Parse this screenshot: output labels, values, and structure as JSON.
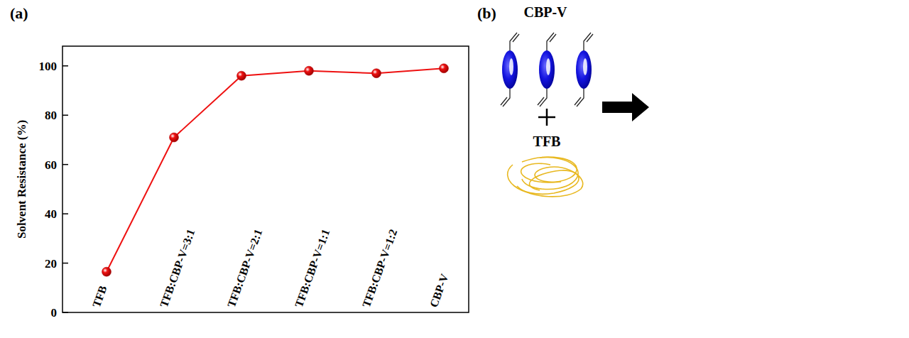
{
  "chart_data": {
    "type": "line",
    "title": "(a)",
    "y_label": "Solvent Resistance (%)",
    "categories": [
      "TFB",
      "TFB:CBP-V=3:1",
      "TFB:CBP-V=2:1",
      "TFB:CBP-V=1:1",
      "TFB:CBP-V=1:2",
      "CBP-V"
    ],
    "values": [
      16.5,
      71,
      96,
      98,
      97,
      99
    ],
    "color": "#ee1111",
    "marker": "circle",
    "line_style": "solid",
    "ylim": [
      0,
      108
    ],
    "yticks": [
      0,
      20,
      40,
      60,
      80,
      100
    ],
    "grid": false
  },
  "diagram": {
    "panel_label": "(b)",
    "monomer_label": "CBP-V",
    "polymer_label": "TFB"
  }
}
